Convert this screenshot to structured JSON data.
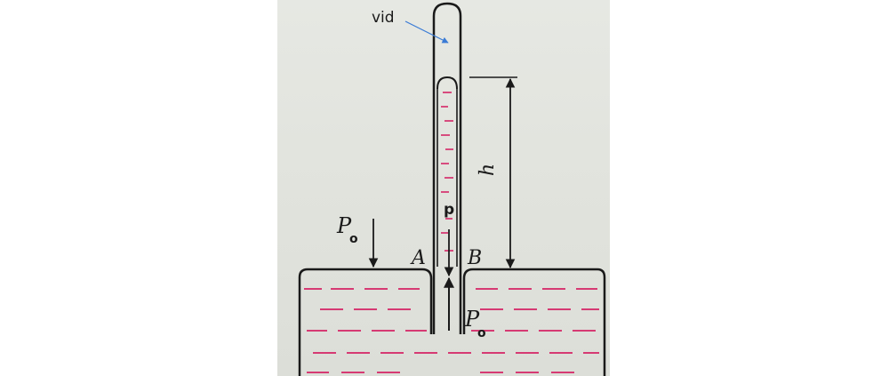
{
  "labels": {
    "vacuum": "vid",
    "height": "h",
    "pressure_inside": "p",
    "ambient_top": "P",
    "ambient_top_sub": "o",
    "ambient_bottom": "P",
    "ambient_bottom_sub": "o",
    "point_a": "A",
    "point_b": "B"
  },
  "colors": {
    "paper": "#e2e4de",
    "ink": "#1a1a1a",
    "liquid_dash": "#d63a73",
    "pointer": "#3a7bd5"
  }
}
